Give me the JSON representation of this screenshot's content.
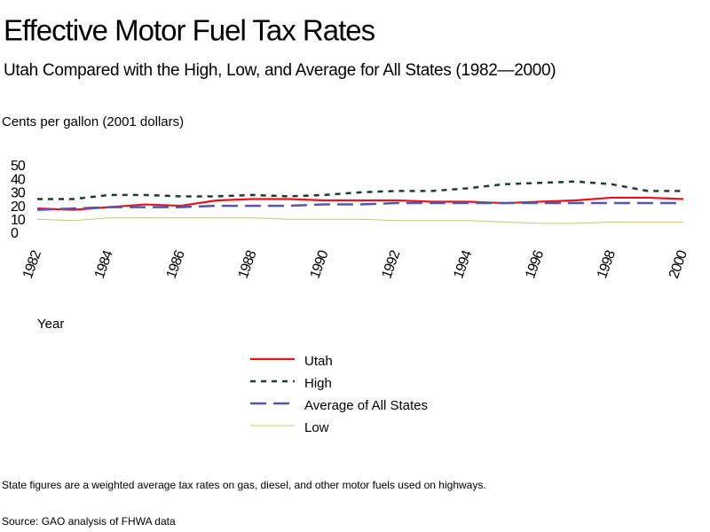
{
  "chart_data": {
    "type": "line",
    "title": "Effective Motor Fuel Tax Rates",
    "subtitle": "Utah Compared with the High, Low, and Average for All States (1982—2000)",
    "ylabel": "Cents per gallon   (2001 dollars)",
    "xlabel": "Year",
    "x": [
      1982,
      1983,
      1984,
      1985,
      1986,
      1987,
      1988,
      1989,
      1990,
      1991,
      1992,
      1993,
      1994,
      1995,
      1996,
      1997,
      1998,
      1999,
      2000
    ],
    "series": [
      {
        "name": "Utah",
        "color": "#e8141c",
        "values": [
          19,
          18,
          20,
          22,
          21,
          25,
          26,
          26,
          25,
          25,
          25,
          24,
          24,
          23,
          24,
          25,
          27,
          27,
          26
        ]
      },
      {
        "name": "High",
        "color": "#1e3d2c",
        "values": [
          26,
          26,
          29,
          29,
          28,
          28,
          29,
          28,
          29,
          31,
          32,
          32,
          34,
          37,
          38,
          39,
          37,
          32,
          32
        ]
      },
      {
        "name": "Average of All States",
        "color": "#5558a8",
        "values": [
          18,
          19,
          20,
          20,
          20,
          21,
          21,
          21,
          22,
          22,
          23,
          23,
          23,
          23,
          23,
          23,
          23,
          23,
          23
        ]
      },
      {
        "name": "Low",
        "color": "#b8cc70",
        "values": [
          11,
          10,
          12,
          12,
          12,
          12,
          12,
          11,
          11,
          11,
          10,
          10,
          10,
          9,
          8,
          8,
          9,
          9,
          9
        ]
      }
    ],
    "xlim": [
      1982,
      2000
    ],
    "xticks": [
      1982,
      1984,
      1986,
      1988,
      1990,
      1992,
      1994,
      1996,
      1998,
      2000
    ],
    "ylim": [
      0,
      50
    ],
    "yticks": [
      0,
      10,
      20,
      30,
      40,
      50
    ],
    "notes": "State figures are a weighted average tax rates on gas, diesel, and other motor fuels used on highways.",
    "source": "Source: GAO analysis of FHWA data"
  }
}
